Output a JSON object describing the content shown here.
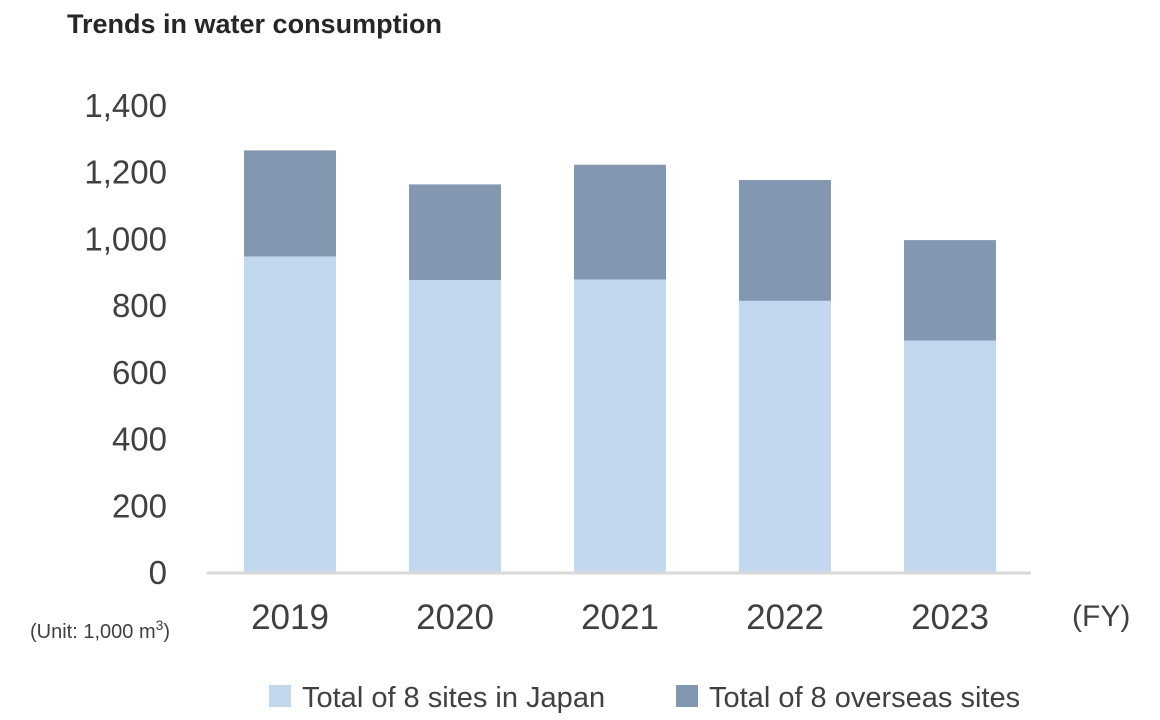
{
  "chart_data": {
    "type": "bar",
    "stacked": true,
    "title": "Trends in water consumption",
    "categories": [
      "2019",
      "2020",
      "2021",
      "2022",
      "2023"
    ],
    "series": [
      {
        "name": "Total of 8 sites in Japan",
        "color": "#c2d8ef",
        "values": [
          946,
          875,
          877,
          813,
          694
        ]
      },
      {
        "name": "Total of 8 overseas sites",
        "color": "#8497b0",
        "values": [
          318,
          287,
          344,
          362,
          301
        ]
      }
    ],
    "ylim": [
      0,
      1400
    ],
    "yticks": [
      "0",
      "200",
      "400",
      "600",
      "800",
      "1,000",
      "1,200",
      "1,400"
    ],
    "ytick_values": [
      0,
      200,
      400,
      600,
      800,
      1000,
      1200,
      1400
    ],
    "unit_label": "(Unit: 1,000 m",
    "unit_superscript": "3",
    "unit_close": ")",
    "x_unit_label": "(FY)",
    "grid": false,
    "legend_position": "bottom"
  }
}
